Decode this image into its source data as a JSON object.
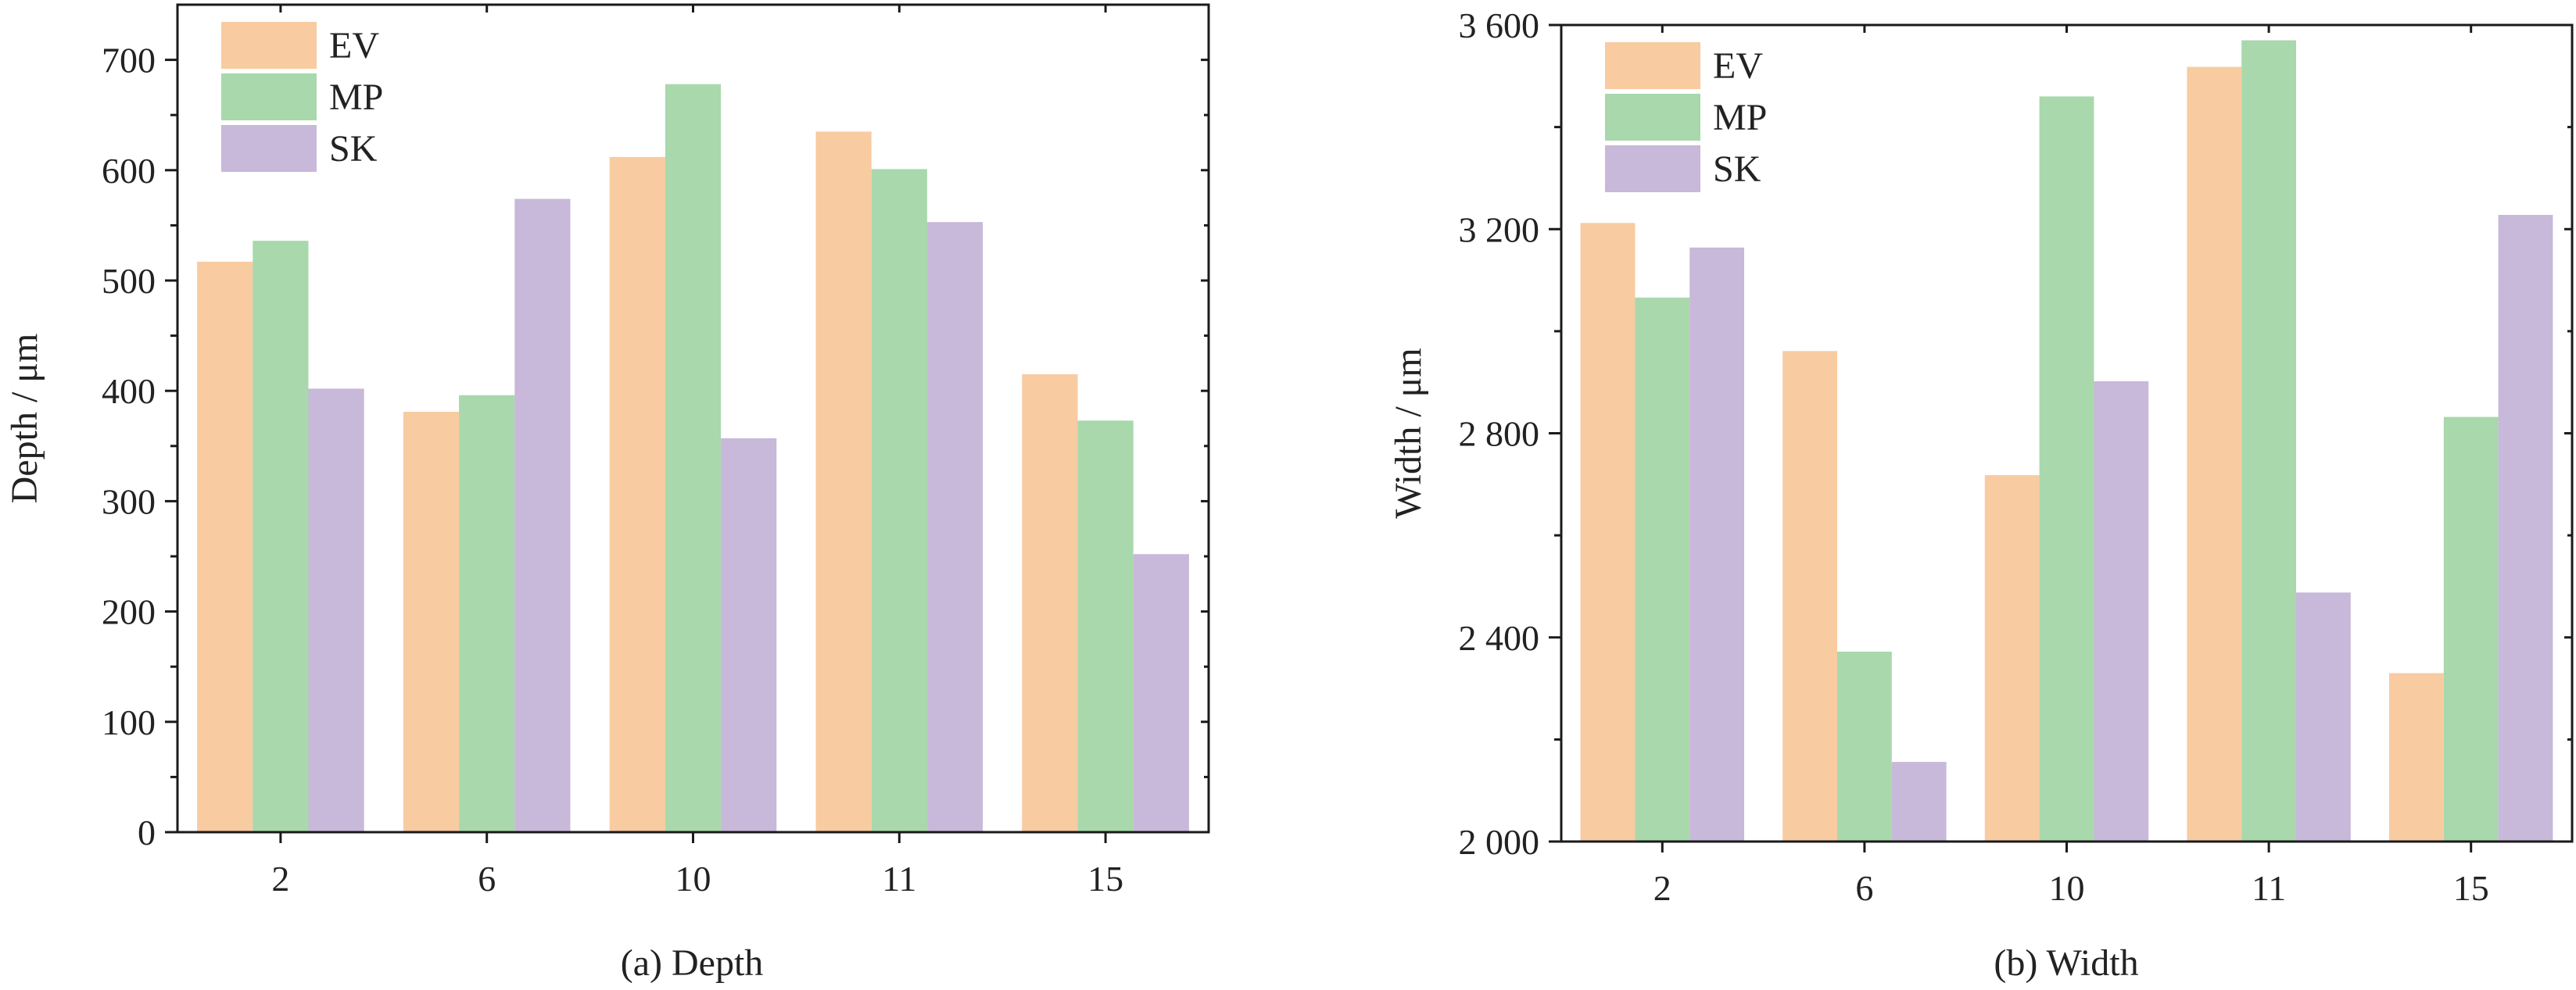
{
  "colors": {
    "EV": "#f8cba1",
    "MP": "#a8d8ab",
    "SK": "#c8b8d9",
    "axis": "#1a1a1a",
    "text": "#222222"
  },
  "chart_data": [
    {
      "type": "bar",
      "caption": "(a) Depth",
      "ylabel": "Depth / μm",
      "categories": [
        "2",
        "6",
        "10",
        "11",
        "15"
      ],
      "ylim": [
        0,
        750
      ],
      "yticks": [
        0,
        100,
        200,
        300,
        400,
        500,
        600,
        700
      ],
      "ytick_labels": [
        "0",
        "100",
        "200",
        "300",
        "400",
        "500",
        "600",
        "700"
      ],
      "legend": {
        "position": "top-left",
        "entries": [
          "EV",
          "MP",
          "SK"
        ]
      },
      "series": [
        {
          "name": "EV",
          "values": [
            517,
            381,
            612,
            635,
            415
          ]
        },
        {
          "name": "MP",
          "values": [
            536,
            396,
            678,
            601,
            373
          ]
        },
        {
          "name": "SK",
          "values": [
            402,
            574,
            357,
            553,
            252
          ]
        }
      ]
    },
    {
      "type": "bar",
      "caption": "(b) Width",
      "ylabel": "Width / μm",
      "categories": [
        "2",
        "6",
        "10",
        "11",
        "15"
      ],
      "ylim": [
        2000,
        3600
      ],
      "yticks": [
        2000,
        2400,
        2800,
        3200,
        3600
      ],
      "ytick_labels": [
        "2 000",
        "2 400",
        "2 800",
        "3 200",
        "3 600"
      ],
      "legend": {
        "position": "top-left",
        "entries": [
          "EV",
          "MP",
          "SK"
        ]
      },
      "series": [
        {
          "name": "EV",
          "values": [
            3212,
            2961,
            2718,
            3518,
            2330
          ]
        },
        {
          "name": "MP",
          "values": [
            3066,
            2372,
            3460,
            3570,
            2832
          ]
        },
        {
          "name": "SK",
          "values": [
            3164,
            2156,
            2902,
            2488,
            3228
          ]
        }
      ]
    }
  ]
}
